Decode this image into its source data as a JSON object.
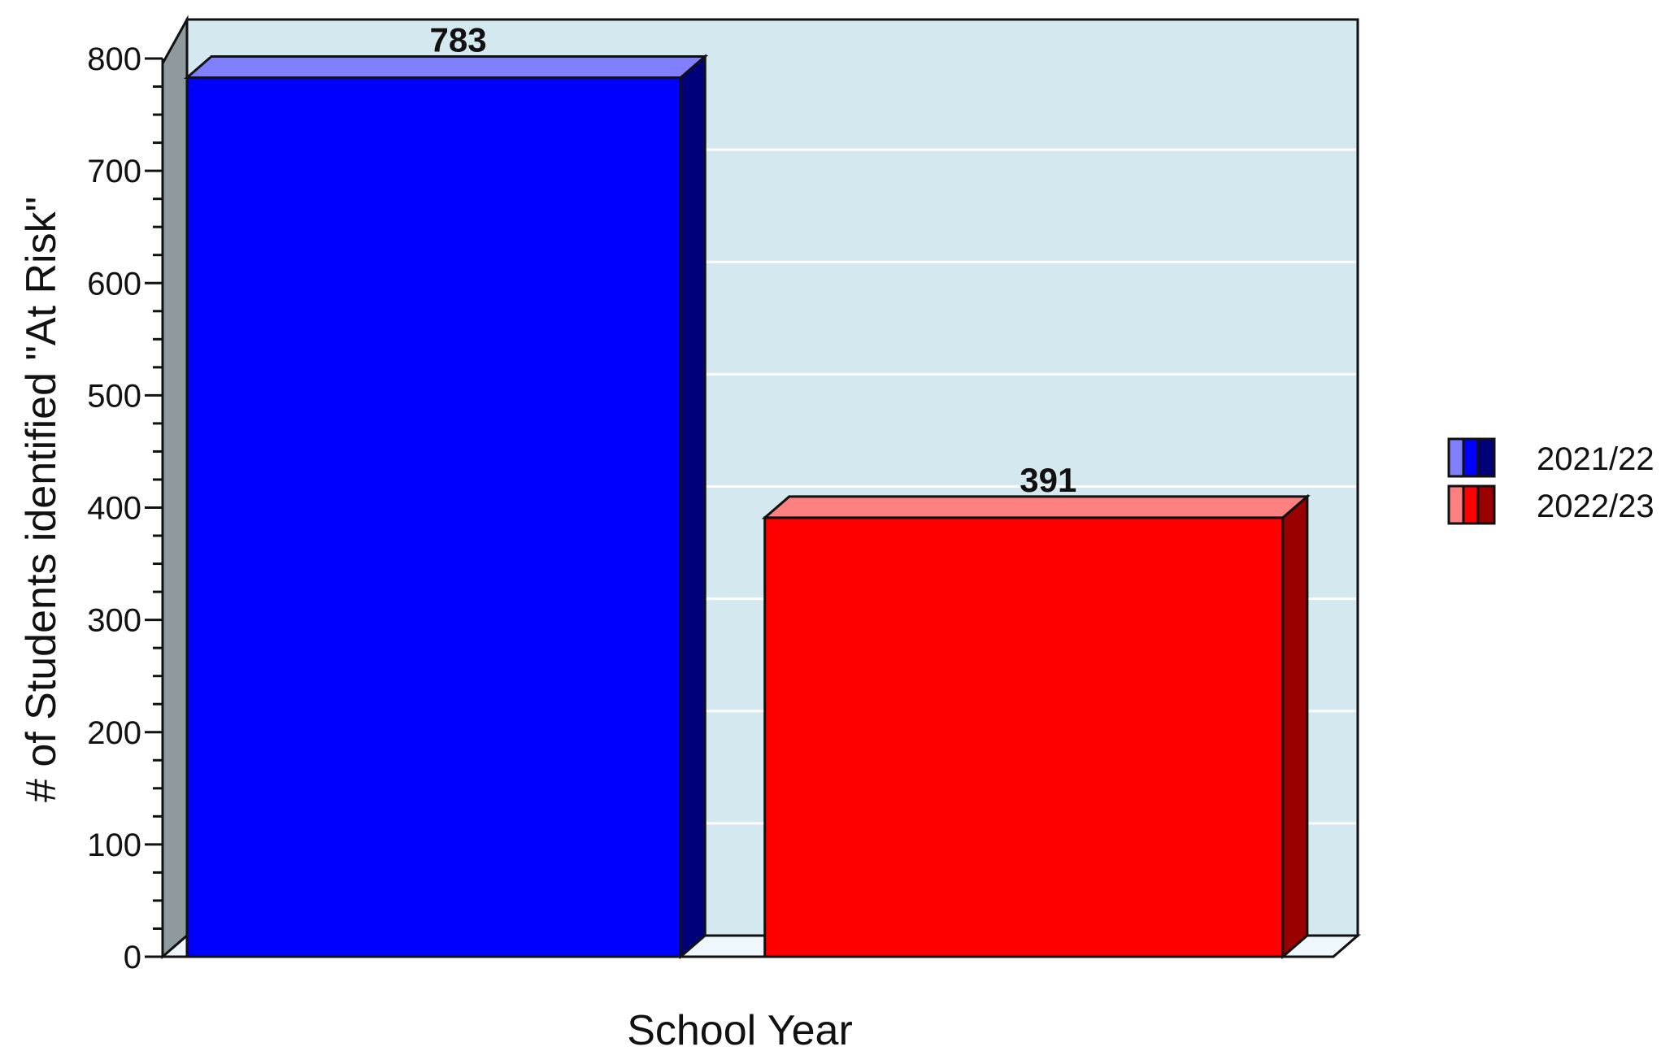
{
  "chart_data": {
    "type": "bar",
    "title": "",
    "xlabel": "School Year",
    "ylabel": "# of Students identified \"At Risk\"",
    "ylim": [
      0,
      800
    ],
    "y_ticks": [
      0,
      100,
      200,
      300,
      400,
      500,
      600,
      700,
      800
    ],
    "grid": true,
    "style": "3d",
    "legend_position": "right",
    "series": [
      {
        "name": "2021/22",
        "value": 783,
        "label": "783",
        "color": "#0000ff",
        "top_color": "#8080ff",
        "side_color": "#00007a"
      },
      {
        "name": "2022/23",
        "value": 391,
        "label": "391",
        "color": "#ff0000",
        "top_color": "#ff8080",
        "side_color": "#9a0000"
      }
    ],
    "colors": {
      "plot_background": "#d4e8f0",
      "left_wall": "#8e9a9e",
      "floor": "#eef7fb",
      "gridline": "#ffffff"
    }
  }
}
